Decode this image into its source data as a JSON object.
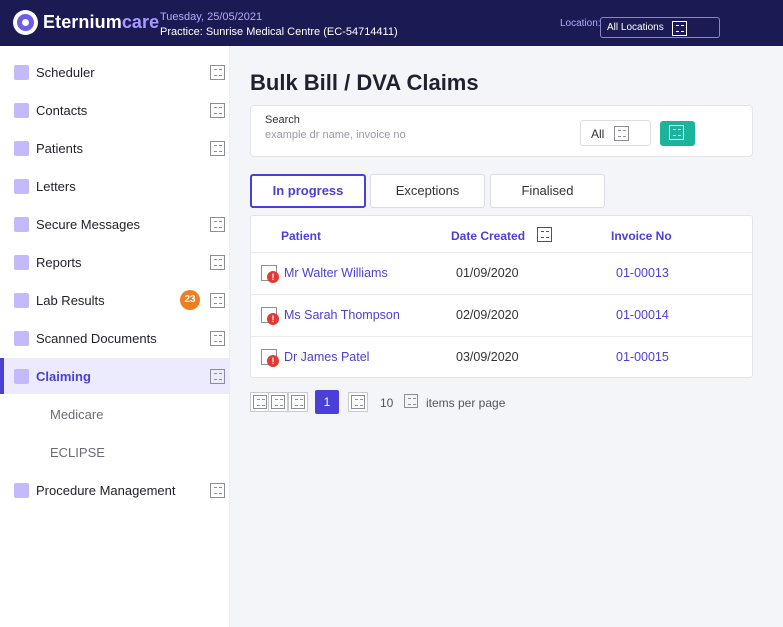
{
  "header": {
    "brand_main": "Eternium",
    "brand_accent": "care",
    "date": "Tuesday, 25/05/2021",
    "practice": "Practice: Sunrise Medical Centre  (EC-54714411)",
    "location_label": "Location:",
    "location_value": "All Locations"
  },
  "sidebar": {
    "items": [
      {
        "label": "Scheduler"
      },
      {
        "label": "Contacts"
      },
      {
        "label": "Patients"
      },
      {
        "label": "Letters"
      },
      {
        "label": "Secure Messages"
      },
      {
        "label": "Reports"
      },
      {
        "label": "Lab Results",
        "badge": "23"
      },
      {
        "label": "Scanned Documents"
      },
      {
        "label": "Claiming",
        "active": true
      },
      {
        "label": "Medicare",
        "sub": true
      },
      {
        "label": "ECLIPSE",
        "sub": true
      },
      {
        "label": "Procedure Management"
      }
    ]
  },
  "main": {
    "title": "Bulk Bill / DVA Claims",
    "search": {
      "label": "Search",
      "placeholder": "example dr name, invoice no",
      "filter_value": "All"
    },
    "tabs": [
      {
        "label": "In progress",
        "active": true
      },
      {
        "label": "Exceptions"
      },
      {
        "label": "Finalised"
      }
    ],
    "table": {
      "columns": [
        "Patient",
        "Date Created",
        "Invoice No"
      ],
      "rows": [
        {
          "patient": "Mr Walter Williams",
          "date": "01/09/2020",
          "invoice": "01-00013"
        },
        {
          "patient": "Ms Sarah Thompson",
          "date": "02/09/2020",
          "invoice": "01-00014"
        },
        {
          "patient": "Dr James Patel",
          "date": "03/09/2020",
          "invoice": "01-00015"
        }
      ]
    },
    "pagination": {
      "current_page": "1",
      "per_page": "10",
      "per_page_label": "items per page"
    }
  },
  "colors": {
    "topbar": "#1c1a52",
    "accent": "#4a3fd6",
    "search_button": "#1bb39b",
    "badge": "#f07d1e",
    "error": "#e53935"
  }
}
